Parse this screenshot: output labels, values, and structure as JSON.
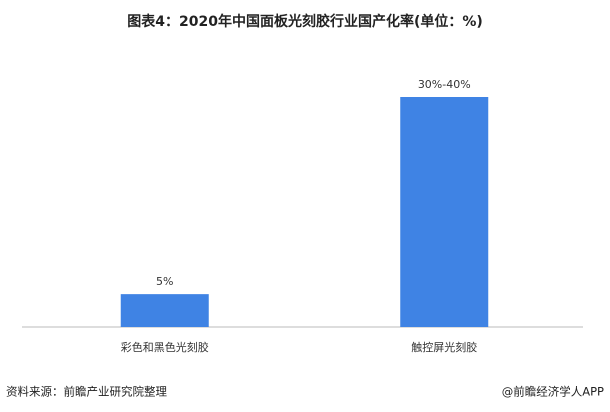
{
  "chart_data": {
    "type": "bar",
    "title": "图表4：2020年中国面板光刻胶行业国产化率(单位：%)",
    "categories": [
      "彩色和黑色光刻胶",
      "触控屏光刻胶"
    ],
    "values": [
      5,
      35
    ],
    "value_labels": [
      "5%",
      "30%-40%"
    ],
    "color": "#3f83e4",
    "source": "资料来源：前瞻产业研究院整理",
    "credit": "@前瞻经济学人APP"
  }
}
